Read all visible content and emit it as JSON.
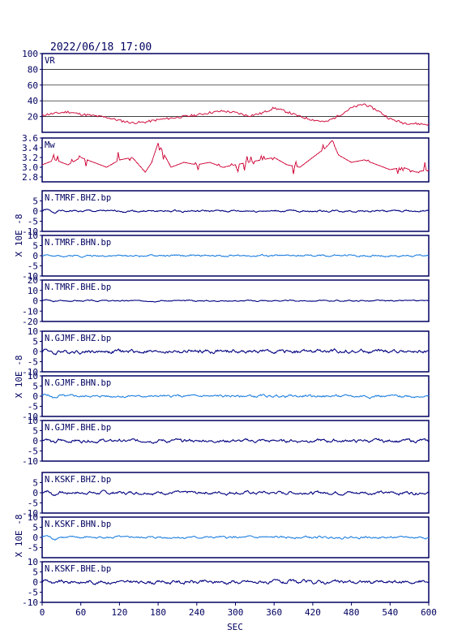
{
  "title": "2022/06/18 17:00",
  "colors": {
    "frame": "#000060",
    "vr": "#d01040",
    "mw": "#d01040",
    "dark_trace": "#000080",
    "light_trace": "#2080e0",
    "grid": "#000000"
  },
  "chart_data": [
    {
      "type": "line",
      "panel": "vr",
      "label": "VR",
      "ylim": [
        0,
        100
      ],
      "yticks": [
        "20",
        "40",
        "60",
        "80",
        "100"
      ],
      "ytick_values": [
        20,
        40,
        60,
        80,
        100
      ],
      "grid": true,
      "x": [
        0,
        20,
        40,
        60,
        80,
        100,
        120,
        140,
        160,
        180,
        200,
        220,
        240,
        260,
        280,
        300,
        320,
        340,
        360,
        380,
        400,
        420,
        440,
        460,
        480,
        500,
        520,
        540,
        560,
        580,
        600
      ],
      "values": [
        22,
        24,
        26,
        23,
        21,
        19,
        15,
        12,
        13,
        16,
        18,
        20,
        22,
        25,
        27,
        25,
        21,
        24,
        31,
        26,
        20,
        16,
        13,
        21,
        31,
        36,
        28,
        17,
        12,
        11,
        10
      ]
    },
    {
      "type": "line",
      "panel": "mw",
      "label": "Mw",
      "ylim": [
        2.7,
        3.6
      ],
      "yticks": [
        "2.8",
        "3.0",
        "3.2",
        "3.4",
        "3.6"
      ],
      "ytick_values": [
        2.8,
        3.0,
        3.2,
        3.4,
        3.6
      ],
      "x": [
        0,
        20,
        40,
        60,
        80,
        100,
        120,
        140,
        160,
        170,
        180,
        200,
        220,
        240,
        260,
        280,
        300,
        320,
        340,
        360,
        380,
        400,
        420,
        440,
        450,
        460,
        480,
        500,
        520,
        540,
        560,
        580,
        600
      ],
      "values": [
        3.05,
        3.15,
        3.05,
        3.2,
        3.1,
        3.0,
        3.15,
        3.2,
        2.9,
        3.1,
        3.5,
        3.0,
        3.1,
        3.05,
        3.1,
        3.0,
        3.05,
        3.1,
        3.15,
        3.2,
        3.05,
        3.0,
        3.2,
        3.4,
        3.55,
        3.25,
        3.1,
        3.15,
        3.05,
        2.95,
        3.0,
        2.9,
        2.95
      ]
    },
    {
      "type": "line",
      "panel": "wave",
      "label": "N.TMRF.BHZ.bp",
      "ylim": [
        -10,
        10
      ],
      "yticks": [
        "-10",
        "-5",
        "0",
        "5"
      ],
      "ytick_values": [
        -10,
        -5,
        0,
        5
      ],
      "color": "dark",
      "amplitude": 0.6,
      "seed": 1
    },
    {
      "type": "line",
      "panel": "wave",
      "label": "N.TMRF.BHN.bp",
      "ylim": [
        -10,
        10
      ],
      "yticks": [
        "-10",
        "-5",
        "0",
        "5",
        "10"
      ],
      "ytick_values": [
        -10,
        -5,
        0,
        5,
        10
      ],
      "color": "light",
      "amplitude": 0.6,
      "seed": 2
    },
    {
      "type": "line",
      "panel": "wave",
      "label": "N.TMRF.BHE.bp",
      "ylim": [
        -20,
        20
      ],
      "yticks": [
        "-20",
        "-10",
        "0",
        "10",
        "20"
      ],
      "ytick_values": [
        -20,
        -10,
        0,
        10,
        20
      ],
      "color": "dark",
      "amplitude": 0.8,
      "seed": 3
    },
    {
      "type": "line",
      "panel": "wave",
      "label": "N.GJMF.BHZ.bp",
      "ylim": [
        -10,
        10
      ],
      "yticks": [
        "-10",
        "-5",
        "0",
        "5",
        "10"
      ],
      "ytick_values": [
        -10,
        -5,
        0,
        5,
        10
      ],
      "color": "dark",
      "amplitude": 1.2,
      "seed": 4
    },
    {
      "type": "line",
      "panel": "wave",
      "label": "N.GJMF.BHN.bp",
      "ylim": [
        -10,
        10
      ],
      "yticks": [
        "-10",
        "-5",
        "0",
        "5",
        "10"
      ],
      "ytick_values": [
        -10,
        -5,
        0,
        5,
        10
      ],
      "color": "light",
      "amplitude": 0.8,
      "seed": 5
    },
    {
      "type": "line",
      "panel": "wave",
      "label": "N.GJMF.BHE.bp",
      "ylim": [
        -10,
        10
      ],
      "yticks": [
        "-10",
        "-5",
        "0",
        "5",
        "10"
      ],
      "ytick_values": [
        -10,
        -5,
        0,
        5,
        10
      ],
      "color": "dark",
      "amplitude": 1.0,
      "seed": 6
    },
    {
      "type": "line",
      "panel": "wave",
      "label": "N.KSKF.BHZ.bp",
      "ylim": [
        -10,
        10
      ],
      "yticks": [
        "-10",
        "-5",
        "0",
        "5"
      ],
      "ytick_values": [
        -10,
        -5,
        0,
        5
      ],
      "color": "dark",
      "amplitude": 1.0,
      "seed": 7
    },
    {
      "type": "line",
      "panel": "wave",
      "label": "N.KSKF.BHN.bp",
      "ylim": [
        -10,
        10
      ],
      "yticks": [
        "-5",
        "0",
        "5",
        "10"
      ],
      "ytick_values": [
        -5,
        0,
        5,
        10
      ],
      "color": "light",
      "amplitude": 0.7,
      "seed": 8
    },
    {
      "type": "line",
      "panel": "wave",
      "label": "N.KSKF.BHE.bp",
      "ylim": [
        -10,
        10
      ],
      "yticks": [
        "-10",
        "-5",
        "0",
        "5",
        "10"
      ],
      "ytick_values": [
        -10,
        -5,
        0,
        5,
        10
      ],
      "color": "dark",
      "amplitude": 1.1,
      "seed": 9
    }
  ],
  "xaxis": {
    "xlim": [
      0,
      600
    ],
    "ticks": [
      "0",
      "60",
      "120",
      "180",
      "240",
      "300",
      "360",
      "420",
      "480",
      "540",
      "600"
    ],
    "tick_values": [
      0,
      60,
      120,
      180,
      240,
      300,
      360,
      420,
      480,
      540,
      600
    ],
    "label": "SEC"
  },
  "ylabel_unit": "X 10E -8"
}
